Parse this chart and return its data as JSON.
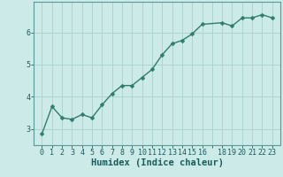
{
  "x": [
    0,
    1,
    2,
    3,
    4,
    5,
    6,
    7,
    8,
    9,
    10,
    11,
    12,
    13,
    14,
    15,
    16,
    18,
    19,
    20,
    21,
    22,
    23
  ],
  "y": [
    2.85,
    3.7,
    3.35,
    3.3,
    3.45,
    3.35,
    3.75,
    4.1,
    4.35,
    4.35,
    4.6,
    4.85,
    5.3,
    5.65,
    5.75,
    5.95,
    6.25,
    6.3,
    6.2,
    6.45,
    6.45,
    6.55,
    6.45
  ],
  "line_color": "#2e7d6e",
  "marker": "D",
  "marker_size": 2.5,
  "linewidth": 1.0,
  "background_color": "#cceae8",
  "grid_color": "#add4d2",
  "xlabel": "Humidex (Indice chaleur)",
  "xlabel_fontsize": 7.5,
  "yticks": [
    3,
    4,
    5,
    6
  ],
  "xtick_labels": [
    "0",
    "1",
    "2",
    "3",
    "4",
    "5",
    "6",
    "7",
    "8",
    "9",
    "10",
    "11",
    "12",
    "13",
    "14",
    "15",
    "16",
    "",
    "18",
    "19",
    "20",
    "21",
    "22",
    "23"
  ],
  "xlim": [
    -0.8,
    23.8
  ],
  "ylim": [
    2.5,
    6.95
  ],
  "tick_fontsize": 6.0
}
